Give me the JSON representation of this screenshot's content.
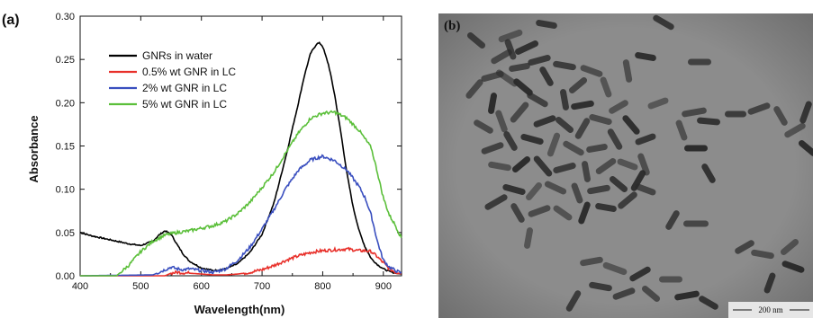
{
  "panel_a": {
    "label": "(a)"
  },
  "panel_b": {
    "label": "(b)",
    "scale_bar_label": "200 nm",
    "background_color": "#8a8a8a",
    "rod_color": "#2b2b2b"
  },
  "chart_data": {
    "type": "line",
    "xlabel": "Wavelength(nm)",
    "ylabel": "Absorbance",
    "xlim": [
      400,
      930
    ],
    "ylim": [
      0.0,
      0.3
    ],
    "xticks": [
      400,
      500,
      600,
      700,
      800,
      900
    ],
    "yticks": [
      0.0,
      0.05,
      0.1,
      0.15,
      0.2,
      0.25,
      0.3
    ],
    "ytick_labels": [
      "0.00",
      "0.05",
      "0.10",
      "0.15",
      "0.20",
      "0.25",
      "0.30"
    ],
    "grid": false,
    "legend_position": "top-left",
    "series": [
      {
        "name": "GNRs in water",
        "color": "#000000",
        "x": [
          400,
          420,
          440,
          460,
          480,
          500,
          520,
          530,
          540,
          550,
          560,
          570,
          580,
          600,
          620,
          640,
          660,
          680,
          700,
          720,
          740,
          760,
          770,
          780,
          790,
          795,
          800,
          810,
          820,
          830,
          840,
          850,
          860,
          870,
          880,
          890,
          900,
          910,
          920,
          930
        ],
        "y": [
          0.05,
          0.046,
          0.043,
          0.04,
          0.037,
          0.035,
          0.04,
          0.047,
          0.052,
          0.048,
          0.036,
          0.025,
          0.017,
          0.009,
          0.006,
          0.008,
          0.014,
          0.027,
          0.048,
          0.085,
          0.14,
          0.2,
          0.232,
          0.257,
          0.268,
          0.269,
          0.265,
          0.243,
          0.208,
          0.165,
          0.118,
          0.08,
          0.052,
          0.033,
          0.02,
          0.013,
          0.008,
          0.005,
          0.003,
          0.002
        ]
      },
      {
        "name": "0.5% wt GNR in LC",
        "color": "#e8302a",
        "x": [
          400,
          540,
          550,
          560,
          580,
          600,
          620,
          640,
          660,
          680,
          700,
          720,
          740,
          760,
          780,
          800,
          820,
          840,
          850,
          860,
          870,
          880,
          890,
          900,
          910,
          920,
          930
        ],
        "y": [
          0.0,
          0.0,
          0.003,
          0.004,
          0.003,
          0.002,
          0.001,
          0.001,
          0.002,
          0.004,
          0.007,
          0.012,
          0.018,
          0.023,
          0.027,
          0.029,
          0.03,
          0.031,
          0.03,
          0.029,
          0.029,
          0.028,
          0.022,
          0.015,
          0.008,
          0.004,
          0.002
        ]
      },
      {
        "name": "2% wt GNR in LC",
        "color": "#3a4fbf",
        "x": [
          400,
          520,
          540,
          550,
          560,
          570,
          580,
          600,
          620,
          640,
          660,
          680,
          700,
          720,
          740,
          760,
          780,
          800,
          820,
          840,
          860,
          870,
          880,
          890,
          900,
          910,
          920,
          930
        ],
        "y": [
          0.0,
          0.001,
          0.007,
          0.01,
          0.008,
          0.007,
          0.008,
          0.006,
          0.004,
          0.008,
          0.018,
          0.033,
          0.054,
          0.077,
          0.102,
          0.122,
          0.134,
          0.138,
          0.133,
          0.122,
          0.103,
          0.09,
          0.07,
          0.04,
          0.018,
          0.01,
          0.006,
          0.003
        ]
      },
      {
        "name": "5% wt GNR in LC",
        "color": "#5bbf3a",
        "x": [
          400,
          460,
          480,
          500,
          520,
          540,
          560,
          580,
          600,
          620,
          640,
          660,
          680,
          700,
          720,
          740,
          760,
          780,
          800,
          820,
          840,
          860,
          870,
          880,
          890,
          900,
          910,
          920,
          930
        ],
        "y": [
          0.0,
          0.0,
          0.012,
          0.028,
          0.04,
          0.047,
          0.05,
          0.052,
          0.055,
          0.058,
          0.063,
          0.072,
          0.085,
          0.102,
          0.12,
          0.143,
          0.165,
          0.182,
          0.188,
          0.189,
          0.182,
          0.168,
          0.158,
          0.148,
          0.12,
          0.09,
          0.07,
          0.058,
          0.043
        ]
      }
    ]
  }
}
